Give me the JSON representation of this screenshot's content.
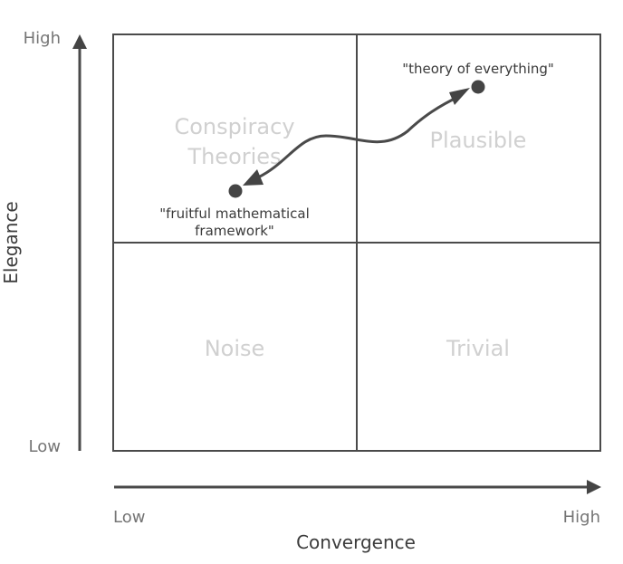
{
  "axes": {
    "y_title": "Elegance",
    "y_high": "High",
    "y_low": "Low",
    "x_title": "Convergence",
    "x_low": "Low",
    "x_high": "High"
  },
  "quadrants": {
    "top_left": [
      "Conspiracy",
      "Theories"
    ],
    "top_right": "Plausible",
    "bottom_left": "Noise",
    "bottom_right": "Trivial"
  },
  "points": {
    "theory_of_everything": "\"theory of everything\"",
    "fruitful_framework": [
      "\"fruitful mathematical",
      "framework\""
    ]
  },
  "colors": {
    "lines": "#4a4a4a",
    "quadrant_text": "#d0d0d0",
    "tick_text": "#757575"
  }
}
